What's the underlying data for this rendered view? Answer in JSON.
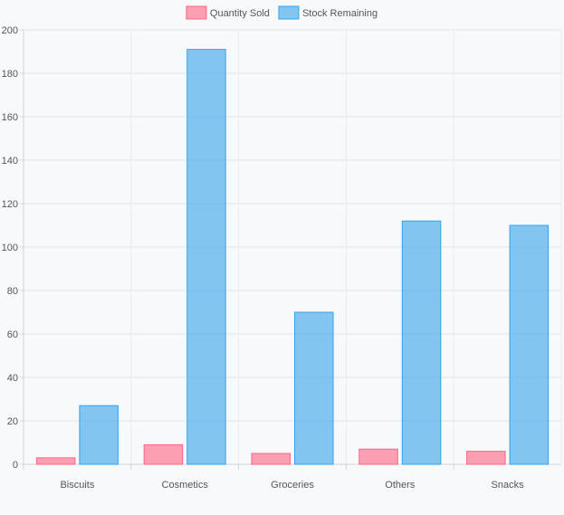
{
  "chart_data": {
    "type": "bar",
    "title": "",
    "xlabel": "",
    "ylabel": "",
    "categories": [
      "Biscuits",
      "Cosmetics",
      "Groceries",
      "Others",
      "Snacks"
    ],
    "series": [
      {
        "name": "Quantity Sold",
        "values": [
          3,
          9,
          5,
          7,
          6
        ],
        "color": "#ff6384"
      },
      {
        "name": "Stock Remaining",
        "values": [
          27,
          191,
          70,
          112,
          110
        ],
        "color": "#36a2eb"
      }
    ],
    "ylim": [
      0,
      200
    ],
    "yticks": [
      0,
      20,
      40,
      60,
      80,
      100,
      120,
      140,
      160,
      180,
      200
    ],
    "grid": true,
    "legend_position": "top-center"
  }
}
